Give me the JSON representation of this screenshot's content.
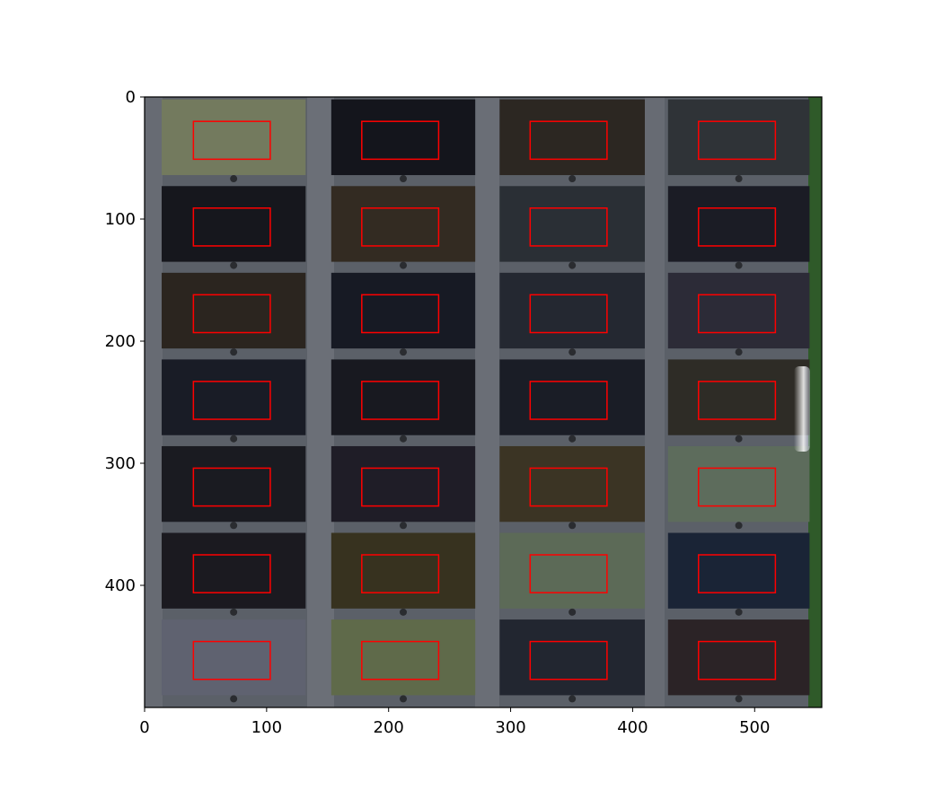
{
  "chart_data": {
    "type": "image",
    "title": "",
    "xlabel": "",
    "ylabel": "",
    "xlim": [
      0,
      555
    ],
    "ylim": [
      500,
      0
    ],
    "x_ticks": [
      0,
      100,
      200,
      300,
      400,
      500
    ],
    "y_ticks": [
      0,
      100,
      200,
      300,
      400
    ],
    "grid": false,
    "image_description": "Camera image of a tray holding a 4-column by 7-row grid of rectangular sample patches in various colors (olive, dark brown, dark navy, grey-green, light grey), separated by grey dividers, with a green strip along the right edge.",
    "roi_box_color": "#ff0000",
    "roi_boxes": [
      {
        "col": 1,
        "row": 1,
        "x0": 40,
        "x1": 103,
        "y0": 20,
        "y1": 51
      },
      {
        "col": 2,
        "row": 1,
        "x0": 178,
        "x1": 241,
        "y0": 20,
        "y1": 51
      },
      {
        "col": 3,
        "row": 1,
        "x0": 316,
        "x1": 379,
        "y0": 20,
        "y1": 51
      },
      {
        "col": 4,
        "row": 1,
        "x0": 454,
        "x1": 517,
        "y0": 20,
        "y1": 51
      },
      {
        "col": 1,
        "row": 2,
        "x0": 40,
        "x1": 103,
        "y0": 91,
        "y1": 122
      },
      {
        "col": 2,
        "row": 2,
        "x0": 178,
        "x1": 241,
        "y0": 91,
        "y1": 122
      },
      {
        "col": 3,
        "row": 2,
        "x0": 316,
        "x1": 379,
        "y0": 91,
        "y1": 122
      },
      {
        "col": 4,
        "row": 2,
        "x0": 454,
        "x1": 517,
        "y0": 91,
        "y1": 122
      },
      {
        "col": 1,
        "row": 3,
        "x0": 40,
        "x1": 103,
        "y0": 162,
        "y1": 193
      },
      {
        "col": 2,
        "row": 3,
        "x0": 178,
        "x1": 241,
        "y0": 162,
        "y1": 193
      },
      {
        "col": 3,
        "row": 3,
        "x0": 316,
        "x1": 379,
        "y0": 162,
        "y1": 193
      },
      {
        "col": 4,
        "row": 3,
        "x0": 454,
        "x1": 517,
        "y0": 162,
        "y1": 193
      },
      {
        "col": 1,
        "row": 4,
        "x0": 40,
        "x1": 103,
        "y0": 233,
        "y1": 264
      },
      {
        "col": 2,
        "row": 4,
        "x0": 178,
        "x1": 241,
        "y0": 233,
        "y1": 264
      },
      {
        "col": 3,
        "row": 4,
        "x0": 316,
        "x1": 379,
        "y0": 233,
        "y1": 264
      },
      {
        "col": 4,
        "row": 4,
        "x0": 454,
        "x1": 517,
        "y0": 233,
        "y1": 264
      },
      {
        "col": 1,
        "row": 5,
        "x0": 40,
        "x1": 103,
        "y0": 304,
        "y1": 335
      },
      {
        "col": 2,
        "row": 5,
        "x0": 178,
        "x1": 241,
        "y0": 304,
        "y1": 335
      },
      {
        "col": 3,
        "row": 5,
        "x0": 316,
        "x1": 379,
        "y0": 304,
        "y1": 335
      },
      {
        "col": 4,
        "row": 5,
        "x0": 454,
        "x1": 517,
        "y0": 304,
        "y1": 335
      },
      {
        "col": 1,
        "row": 6,
        "x0": 40,
        "x1": 103,
        "y0": 375,
        "y1": 406
      },
      {
        "col": 2,
        "row": 6,
        "x0": 178,
        "x1": 241,
        "y0": 375,
        "y1": 406
      },
      {
        "col": 3,
        "row": 6,
        "x0": 316,
        "x1": 379,
        "y0": 375,
        "y1": 406
      },
      {
        "col": 4,
        "row": 6,
        "x0": 454,
        "x1": 517,
        "y0": 375,
        "y1": 406
      },
      {
        "col": 1,
        "row": 7,
        "x0": 40,
        "x1": 103,
        "y0": 446,
        "y1": 477
      },
      {
        "col": 2,
        "row": 7,
        "x0": 178,
        "x1": 241,
        "y0": 446,
        "y1": 477
      },
      {
        "col": 3,
        "row": 7,
        "x0": 316,
        "x1": 379,
        "y0": 446,
        "y1": 477
      },
      {
        "col": 4,
        "row": 7,
        "x0": 454,
        "x1": 517,
        "y0": 446,
        "y1": 477
      }
    ],
    "patch_colors": [
      [
        "#737a5e",
        "#14151c",
        "#2c2722",
        "#2f3337"
      ],
      [
        "#16171d",
        "#332b22",
        "#2a2f35",
        "#1b1c25"
      ],
      [
        "#2b251f",
        "#171a24",
        "#242831",
        "#2c2b37"
      ],
      [
        "#191c26",
        "#181920",
        "#1a1d26",
        "#2e2c26"
      ],
      [
        "#1a1b21",
        "#1f1d27",
        "#3b3424",
        "#5d6c5c"
      ],
      [
        "#1b1a20",
        "#37321f",
        "#5c6a57",
        "#1a2436"
      ],
      [
        "#5f6270",
        "#5f6a4a",
        "#222630",
        "#2b2326"
      ]
    ]
  }
}
